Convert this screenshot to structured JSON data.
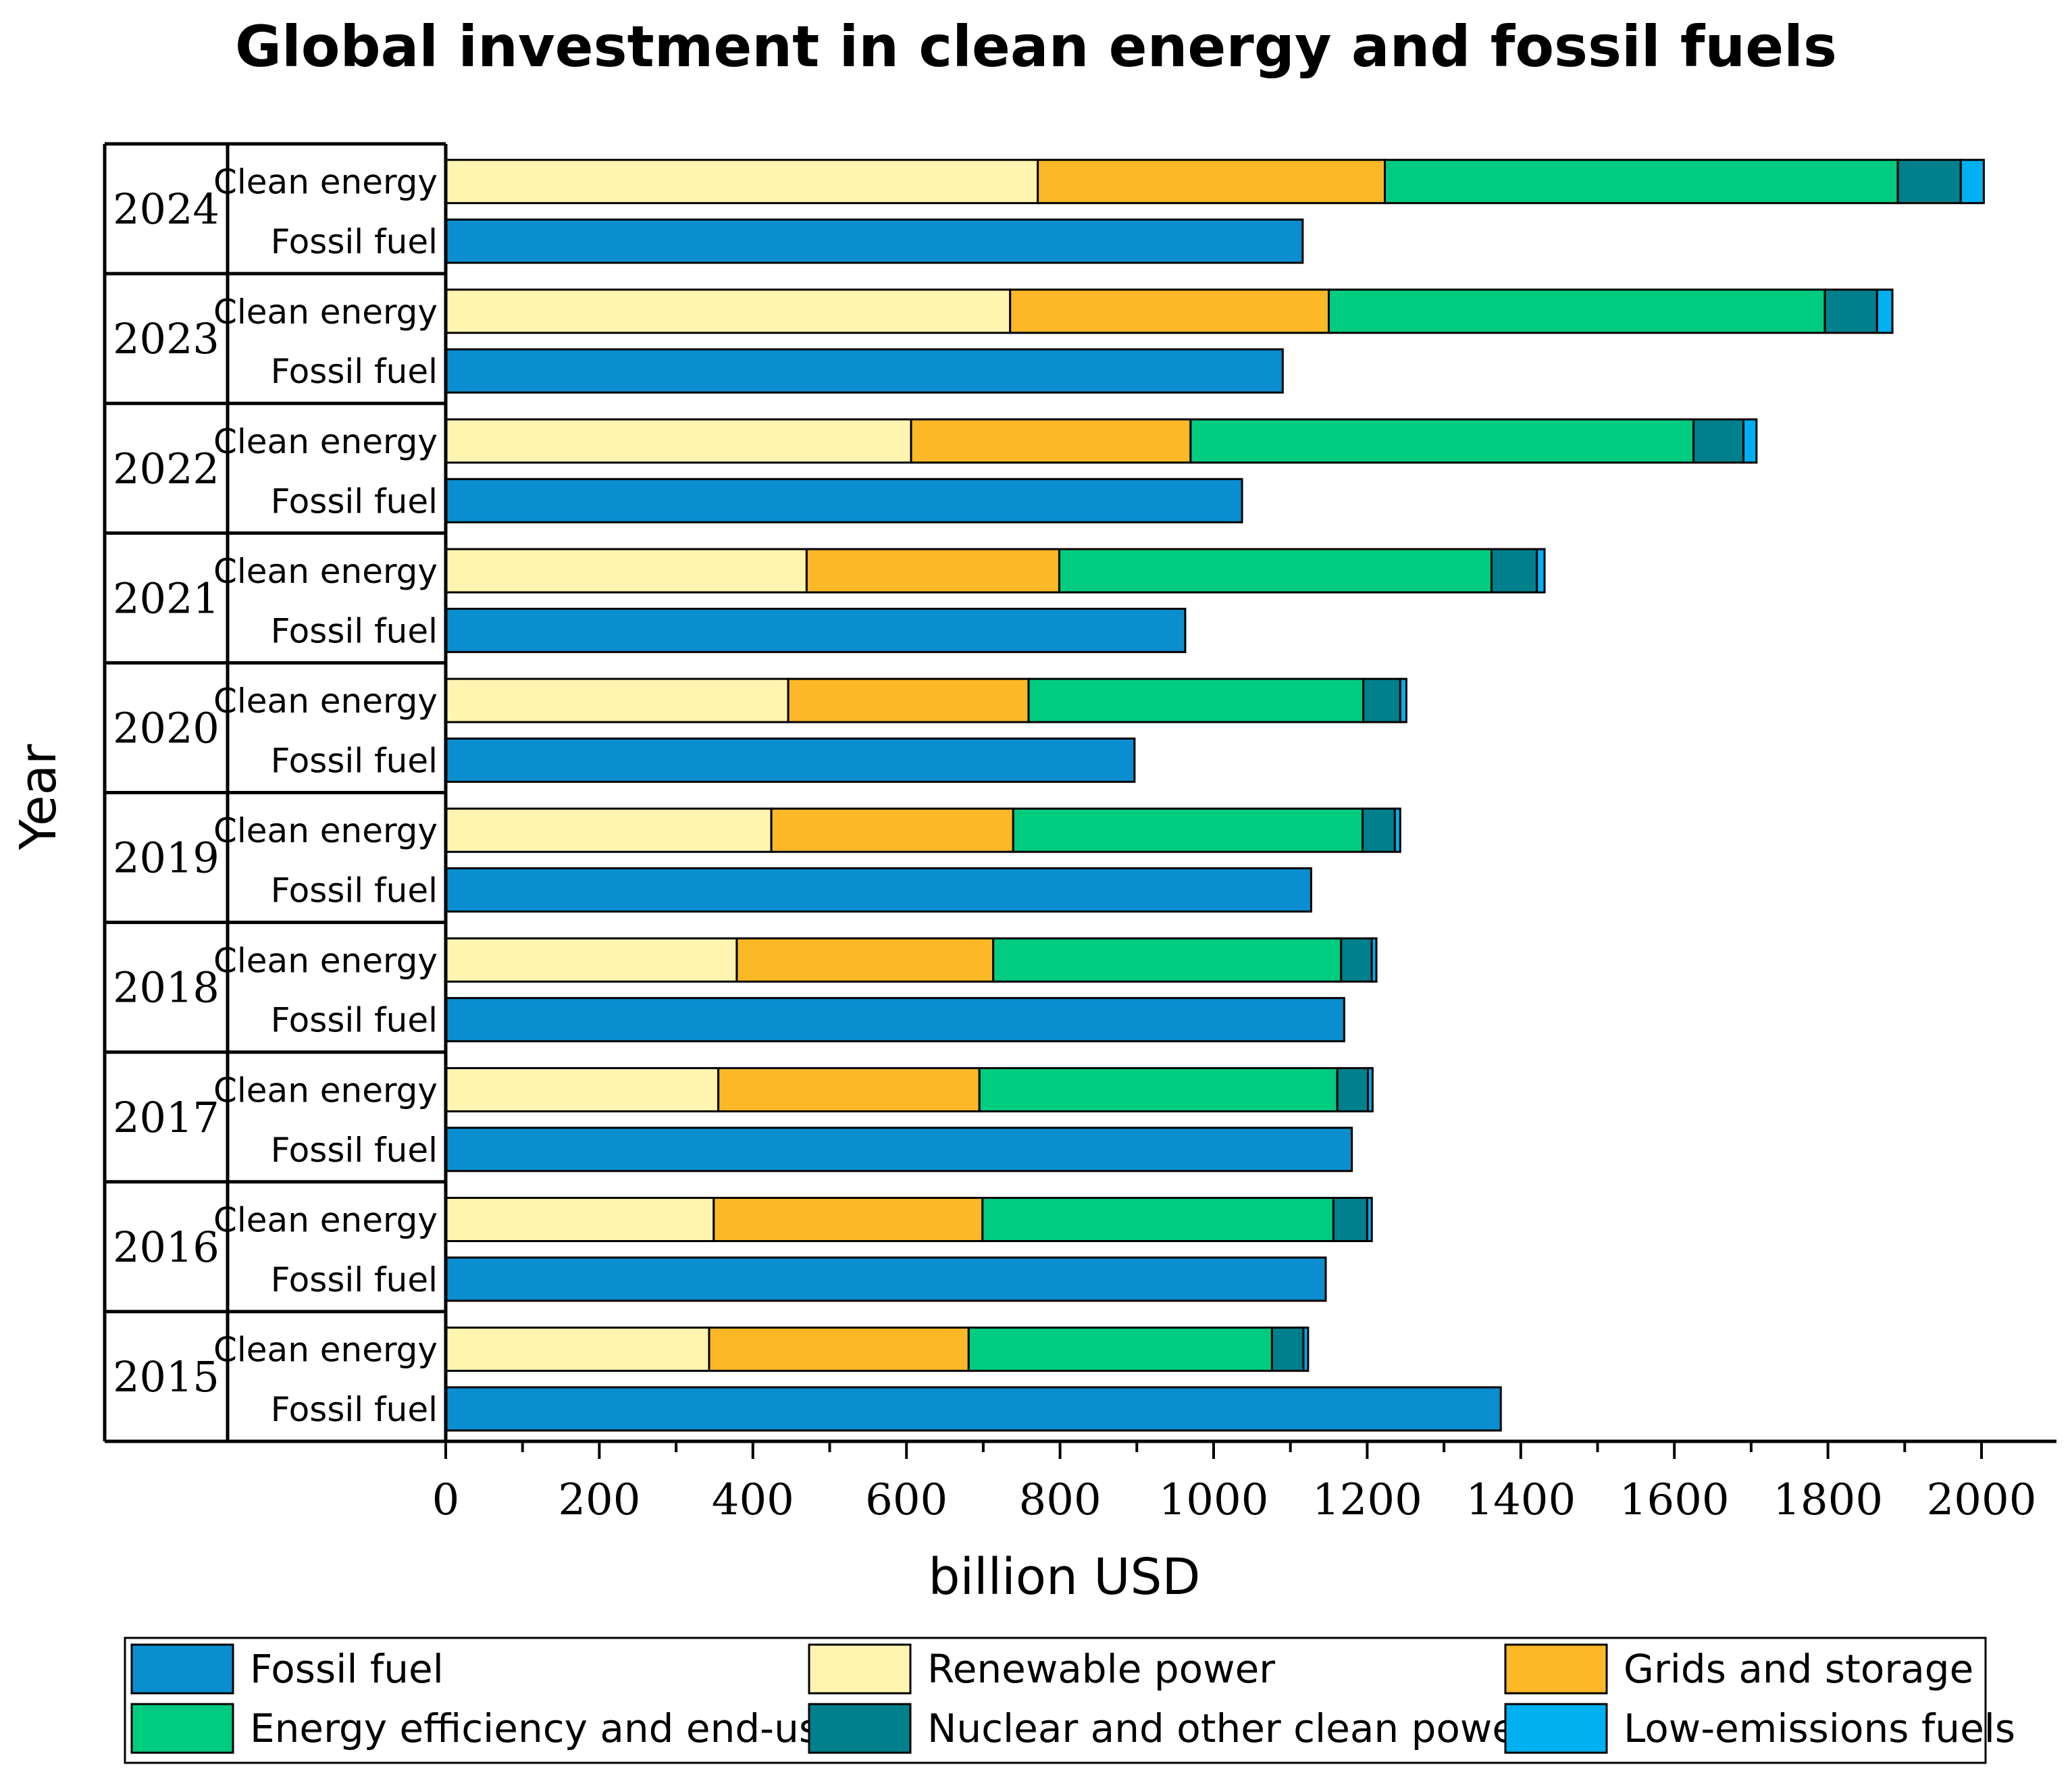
{
  "chart_data": {
    "type": "bar",
    "orientation": "horizontal",
    "stacked": true,
    "title": "Global investment in clean energy and fossil fuels",
    "xlabel": "billion USD",
    "ylabel": "Year",
    "xlim": [
      0,
      2000
    ],
    "xticks": [
      "0",
      "200",
      "400",
      "600",
      "800",
      "1000",
      "1200",
      "1400",
      "1600",
      "1800",
      "2000"
    ],
    "row_labels": {
      "clean": "Clean energy",
      "fossil": "Fossil fuel"
    },
    "years": [
      "2024",
      "2023",
      "2022",
      "2021",
      "2020",
      "2019",
      "2018",
      "2017",
      "2016",
      "2015"
    ],
    "components": [
      {
        "key": "renewable",
        "name": "Renewable power",
        "color": "#FFF5B0"
      },
      {
        "key": "grids",
        "name": "Grids and storage",
        "color": "#FDB827"
      },
      {
        "key": "efficiency",
        "name": "Energy efficiency and end-use",
        "color": "#00CC80"
      },
      {
        "key": "nuclear",
        "name": "Nuclear and other clean power",
        "color": "#00808C"
      },
      {
        "key": "lowemission",
        "name": "Low-emissions fuels",
        "color": "#00B0F0"
      }
    ],
    "fossil_series": {
      "name": "Fossil fuel",
      "color": "#0A8ED0"
    },
    "clean_energy": {
      "renewable": [
        771,
        735,
        606,
        470,
        446,
        424,
        379,
        355,
        349,
        343
      ],
      "grids": [
        452,
        415,
        364,
        329,
        313,
        315,
        334,
        340,
        350,
        338
      ],
      "efficiency": [
        668,
        646,
        655,
        563,
        436,
        455,
        453,
        466,
        457,
        395
      ],
      "nuclear": [
        82,
        68,
        65,
        59,
        48,
        42,
        40,
        40,
        44,
        41
      ],
      "lowemission": [
        30,
        20,
        17,
        10,
        8,
        7,
        6,
        6,
        6,
        6
      ]
    },
    "fossil": [
      1116,
      1090,
      1037,
      963,
      897,
      1127,
      1170,
      1180,
      1146,
      1374
    ],
    "legend": {
      "placement": "bottom",
      "items": [
        "Fossil fuel",
        "Renewable power",
        "Grids and storage",
        "Energy efficiency and end-use",
        "Nuclear and other clean power",
        "Low-emissions fuels"
      ]
    }
  }
}
